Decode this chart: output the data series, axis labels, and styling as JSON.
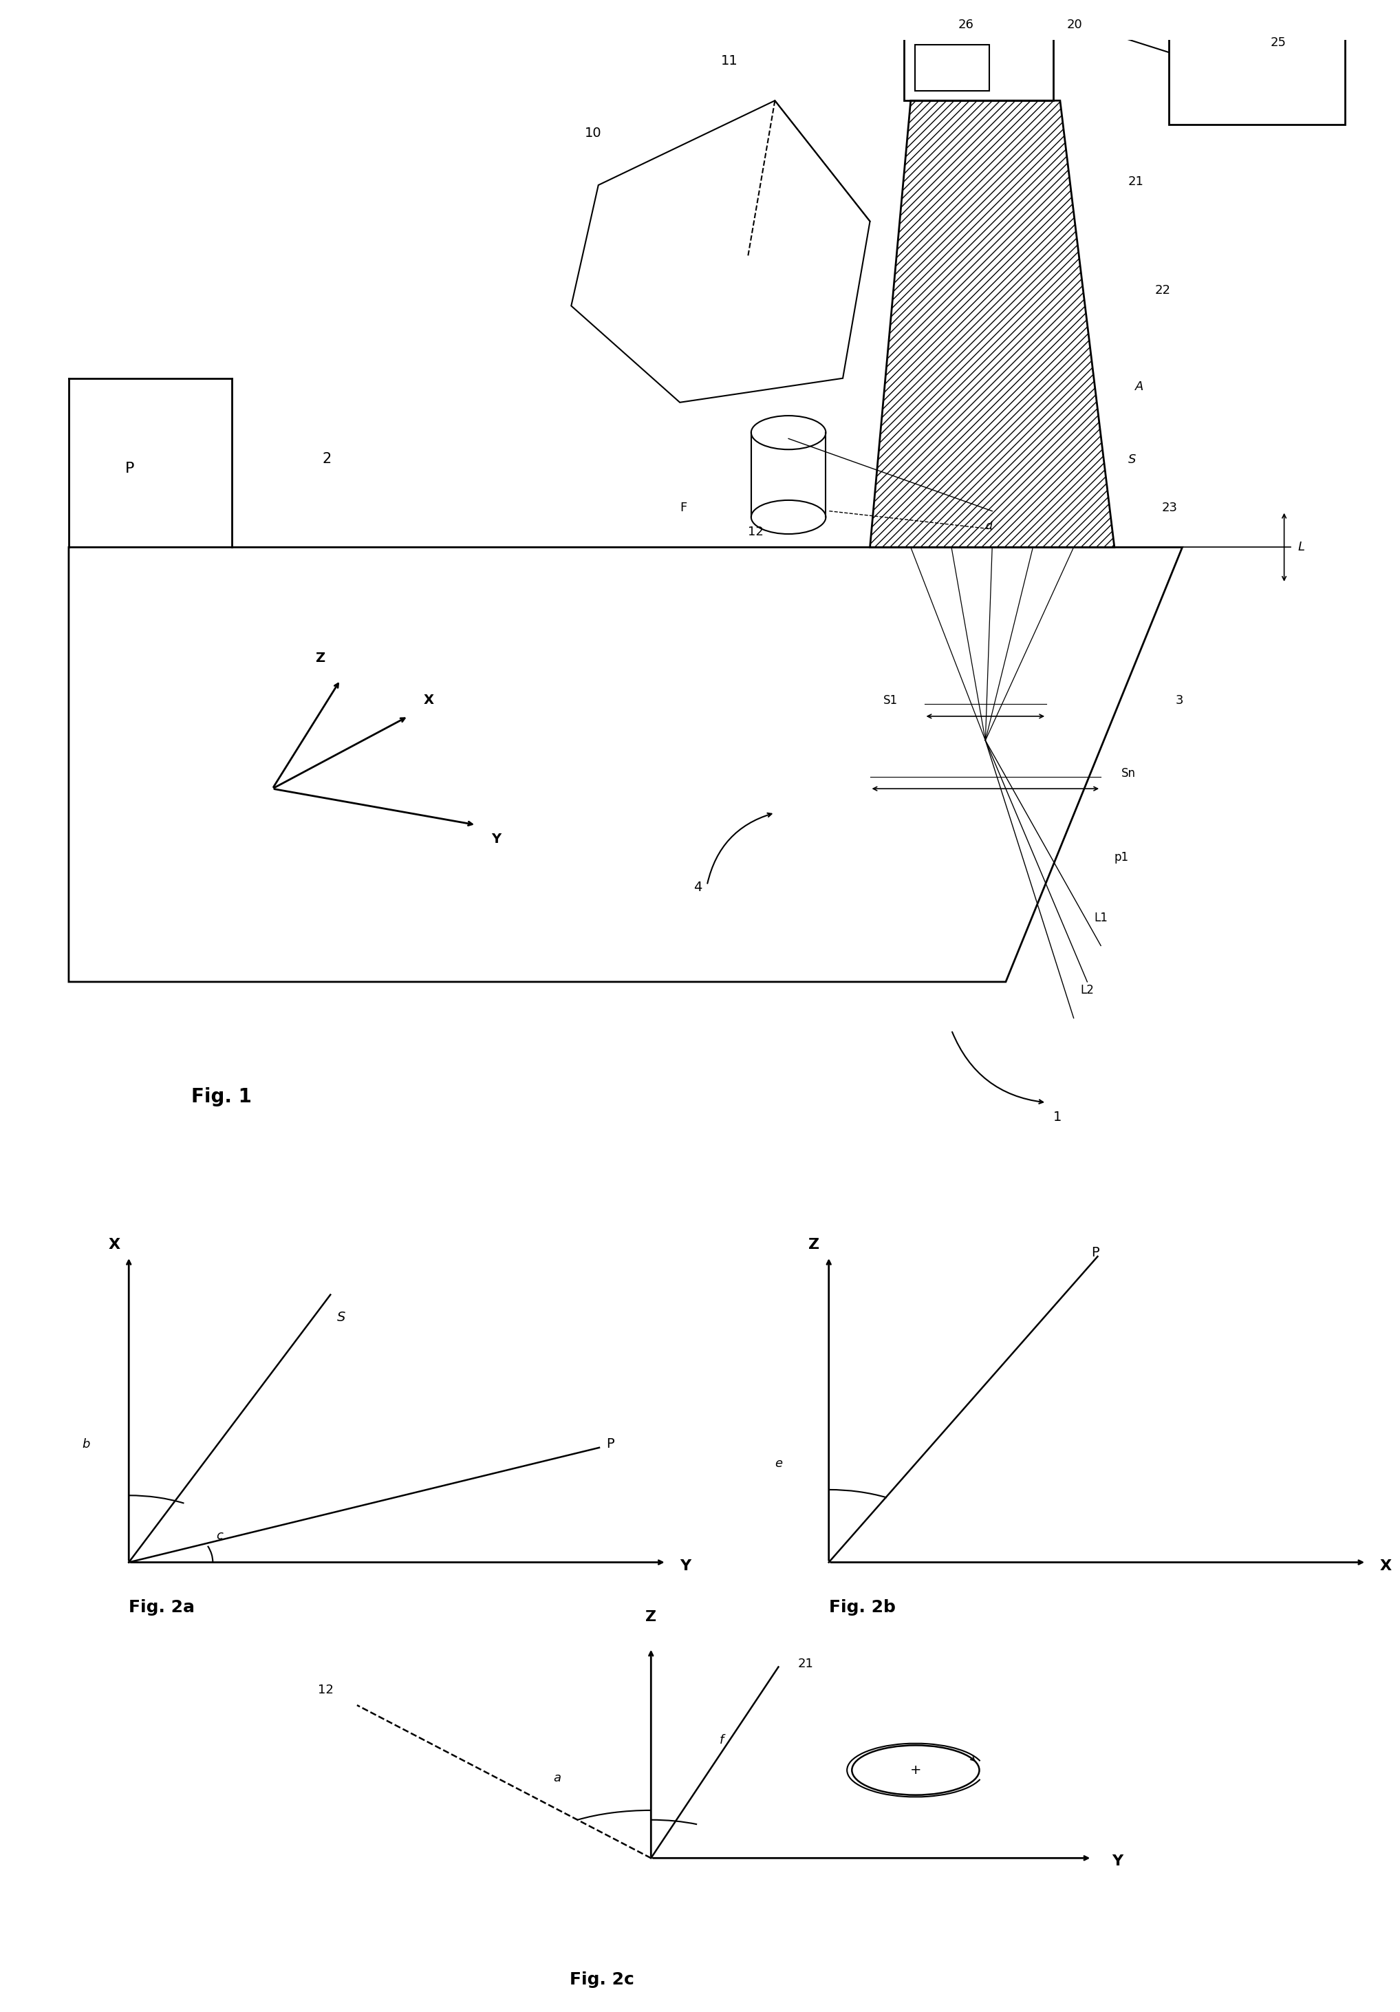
{
  "fig_width": 20.35,
  "fig_height": 29.24,
  "bg_color": "#ffffff",
  "lc": "#000000",
  "fig1_title": "Fig. 1",
  "fig2a_title": "Fig. 2a",
  "fig2b_title": "Fig. 2b",
  "fig2c_title": "Fig. 2c"
}
